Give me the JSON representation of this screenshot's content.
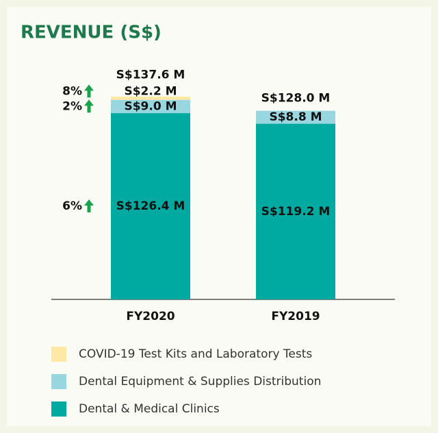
{
  "chart_data": {
    "type": "stacked_bar",
    "title": "REVENUE (S$)",
    "categories": [
      "FY2020",
      "FY2019"
    ],
    "series": [
      {
        "name": "Dental & Medical Clinics",
        "color": "#00aaa0",
        "values": [
          126.4,
          119.2
        ],
        "value_labels": [
          "S$126.4 M",
          "S$119.2 M"
        ],
        "change": "6%"
      },
      {
        "name": "Dental Equipment & Supplies Distribution",
        "color": "#98d6e0",
        "values": [
          9.0,
          8.8
        ],
        "value_labels": [
          "S$9.0 M",
          "S$8.8 M"
        ],
        "change": "2%"
      },
      {
        "name": "COVID-19 Test Kits and Laboratory Tests",
        "color": "#fde8a6",
        "values": [
          2.2,
          null
        ],
        "value_labels": [
          "S$2.2 M",
          null
        ],
        "change": "8%"
      }
    ],
    "totals": {
      "values": [
        137.6,
        128.0
      ],
      "value_labels": [
        "S$137.6 M",
        "S$128.0 M"
      ]
    },
    "ylim": [
      0,
      137.6
    ]
  }
}
